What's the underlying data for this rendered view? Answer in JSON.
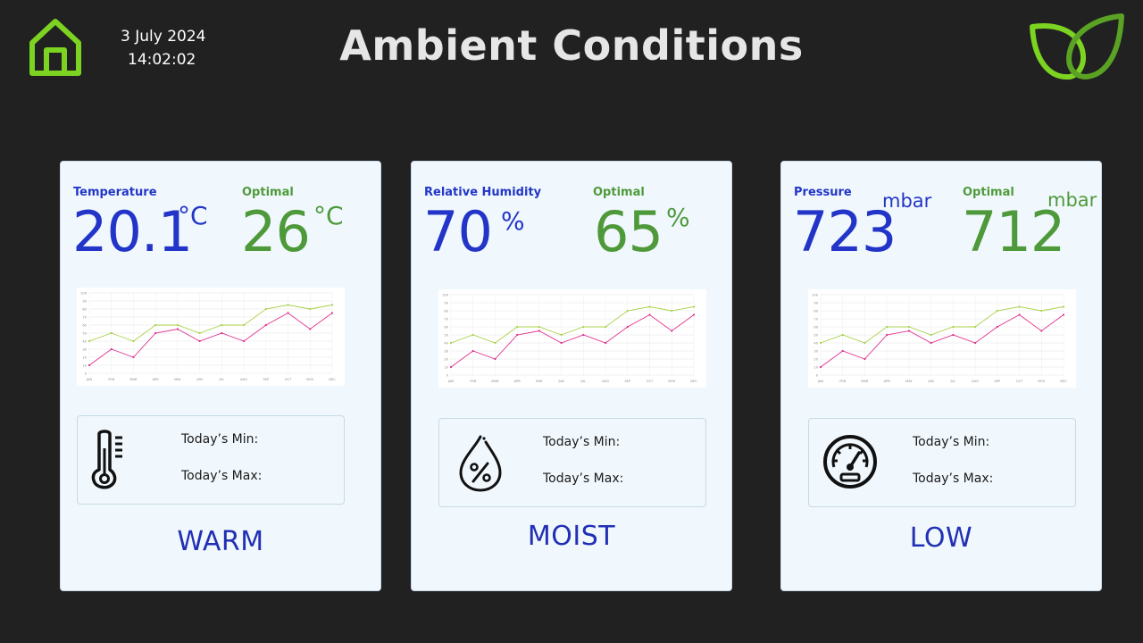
{
  "header": {
    "date": "3 July 2024",
    "time": "14:02:02",
    "title": "Ambient Conditions"
  },
  "colors": {
    "background": "#212121",
    "accent_green": "#7dd321",
    "current_blue": "#2235c8",
    "optimal_green": "#4e9a3b",
    "series_lime": "#a8d24a",
    "series_magenta": "#e0318e"
  },
  "icons": {
    "home": "home-icon",
    "leaf": "leaf-logo-icon",
    "temperature": "thermometer-icon",
    "humidity": "humidity-drop-icon",
    "pressure": "gauge-icon"
  },
  "cards": [
    {
      "current_label": "Temperature",
      "current_value": "20.1",
      "current_unit": "°C",
      "optimal_label": "Optimal",
      "optimal_value": "26",
      "optimal_unit": "°C",
      "min_label": "Today’s Min:",
      "max_label": "Today’s Max:",
      "status": "WARM"
    },
    {
      "current_label": "Relative Humidity",
      "current_value": "70",
      "current_unit": "%",
      "optimal_label": "Optimal",
      "optimal_value": "65",
      "optimal_unit": "%",
      "min_label": "Today’s Min:",
      "max_label": "Today’s Max:",
      "status": "MOIST"
    },
    {
      "current_label": "Pressure",
      "current_value": "723",
      "current_unit": "mbar",
      "optimal_label": "Optimal",
      "optimal_value": "712",
      "optimal_unit": "mbar",
      "min_label": "Today’s Min:",
      "max_label": "Today’s Max:",
      "status": "LOW"
    }
  ],
  "chart_data": {
    "type": "line",
    "categories": [
      "JAN",
      "FEB",
      "MAR",
      "APR",
      "MAY",
      "JUN",
      "JUL",
      "AUG",
      "SEP",
      "OCT",
      "NOV",
      "DEC"
    ],
    "y_ticks": [
      0,
      10,
      20,
      30,
      40,
      50,
      60,
      70,
      80,
      90,
      100
    ],
    "ylim": [
      0,
      100
    ],
    "grid": true,
    "series": [
      {
        "color": "#a8d24a",
        "values": [
          40,
          50,
          40,
          60,
          60,
          50,
          60,
          60,
          80,
          85,
          80,
          85
        ]
      },
      {
        "color": "#e0318e",
        "values": [
          10,
          30,
          20,
          50,
          55,
          40,
          50,
          40,
          60,
          75,
          55,
          75
        ]
      }
    ]
  }
}
